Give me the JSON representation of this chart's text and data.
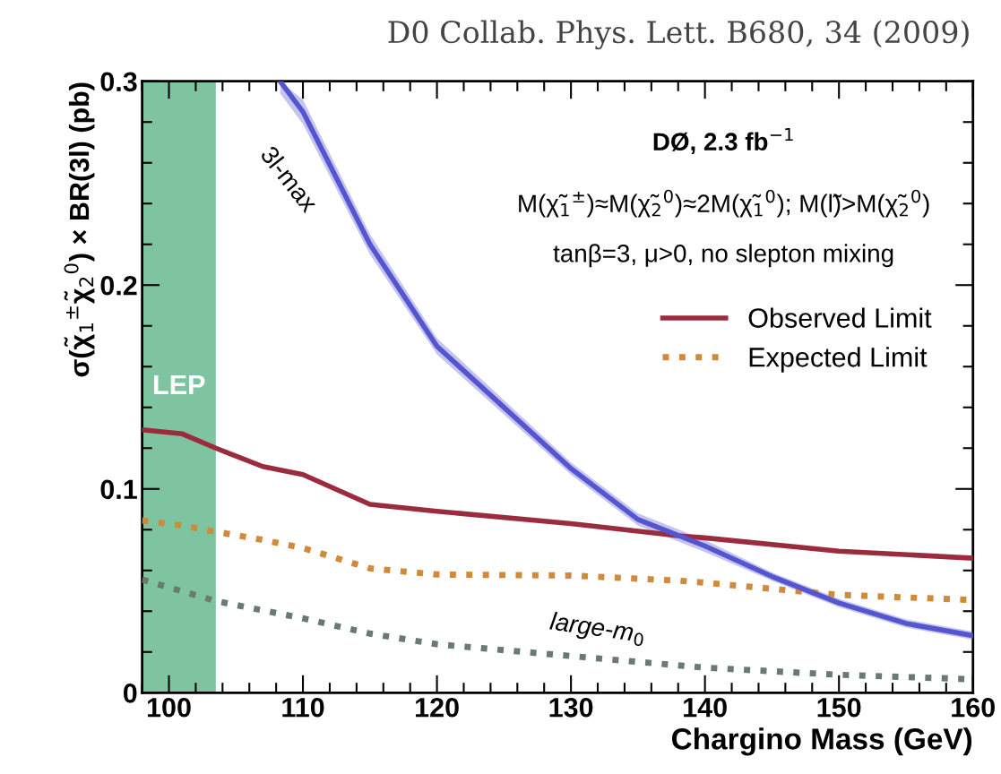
{
  "chart_data": {
    "type": "line",
    "xlabel": "Chargino Mass (GeV)",
    "ylabel": "σ(χ̃$_{1}$$^{±}$χ̃$_{2}$$^{0}$) × BR(3l) (pb)",
    "x": [
      98,
      101,
      103.5,
      107,
      110,
      115,
      120,
      130,
      138,
      140,
      150,
      160
    ],
    "series": [
      {
        "name": "Observed Limit",
        "color": "#9b2c3e",
        "line_style": "solid",
        "values": [
          0.129,
          0.127,
          0.12,
          0.111,
          0.107,
          0.0924,
          0.089,
          0.083,
          0.077,
          0.076,
          0.0695,
          0.066
        ]
      },
      {
        "name": "Expected Limit",
        "color": "#d08a3c",
        "line_style": "dotted",
        "values": [
          0.0845,
          0.082,
          0.079,
          0.075,
          0.071,
          0.061,
          0.058,
          0.0575,
          0.055,
          0.054,
          0.048,
          0.0455
        ]
      },
      {
        "color": "#5555d0",
        "line_style": "solid",
        "x": [
          108.3,
          110,
          115,
          120,
          130,
          135,
          140,
          145,
          150,
          155,
          160
        ],
        "values": [
          0.3,
          0.285,
          0.22,
          0.17,
          0.11,
          0.085,
          0.072,
          0.057,
          0.044,
          0.034,
          0.028
        ],
        "lower": [
          0.294,
          0.279,
          0.215,
          0.166,
          0.107,
          0.082,
          0.069,
          0.055,
          0.042,
          0.032,
          0.026
        ],
        "upper": [
          0.3,
          0.291,
          0.225,
          0.174,
          0.113,
          0.088,
          0.075,
          0.059,
          0.046,
          0.036,
          0.03
        ]
      },
      {
        "color": "#6a7a70",
        "line_style": "dotted",
        "x": [
          98,
          103.5,
          110,
          115,
          120,
          130,
          140,
          150,
          160
        ],
        "values": [
          0.0555,
          0.045,
          0.0365,
          0.029,
          0.0238,
          0.018,
          0.0123,
          0.0088,
          0.0066
        ]
      }
    ],
    "bands": [
      {
        "axis": "x",
        "from": 98,
        "to": 103.5,
        "label": "LEP",
        "color": "#7fc4a0"
      }
    ],
    "annotations": [
      "D0 Collab. Phys. Lett. B680, 34 (2009)",
      "DØ, 2.3 fb$^{−1}$",
      "M(χ̃$_{1}$$^{±}$)≈M(χ̃$_{2}$$^{0}$)≈2M(χ̃$_{1}$$^{0}$); M(l̃)>M(χ̃$_{2}$$^{0}$)",
      "tanβ=3, μ>0, no slepton mixing",
      {
        "text": "3l-max",
        "x": 112,
        "y": 0.26
      },
      {
        "text": "large-m$_{0}$",
        "x": 132,
        "y": 0.02
      }
    ],
    "xlim": [
      98,
      160
    ],
    "ylim": [
      0,
      0.3
    ],
    "xticks": [
      100,
      110,
      120,
      130,
      140,
      150,
      160
    ],
    "yticks": [
      0,
      0.1,
      0.2,
      0.3
    ],
    "grid": false,
    "legend": "top right",
    "marker": "none"
  }
}
